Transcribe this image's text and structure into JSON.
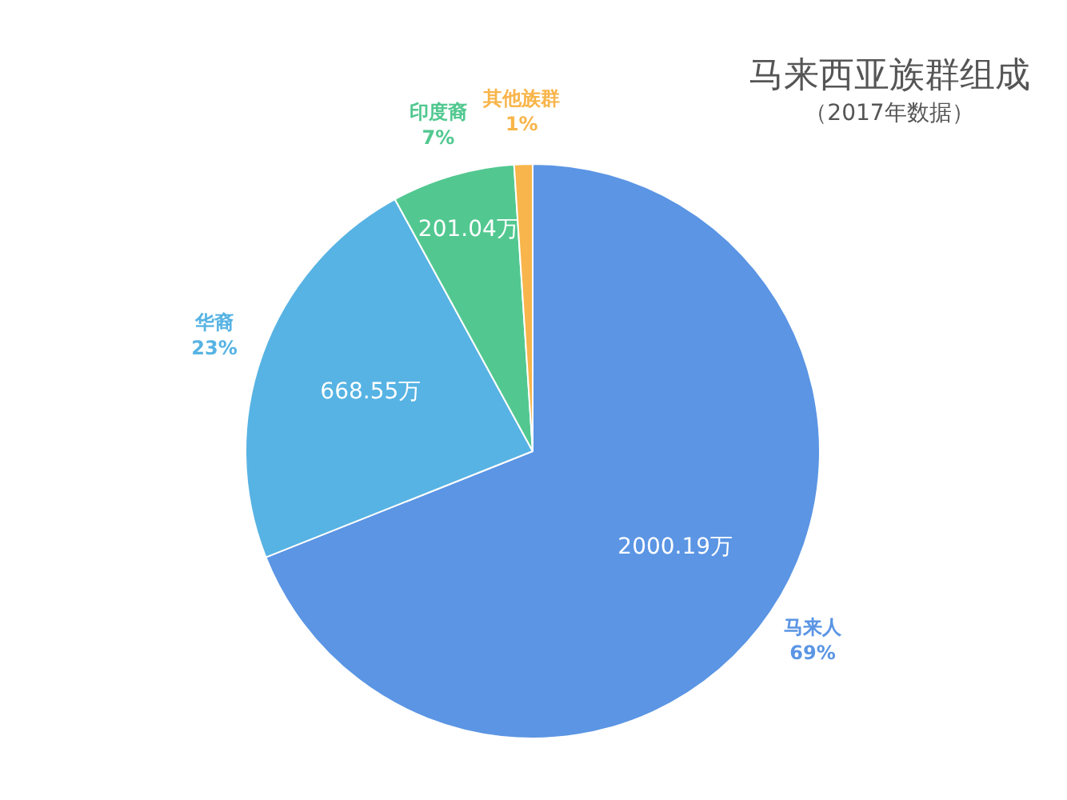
{
  "chart_data": {
    "type": "pie",
    "title": "马来西亚族群组成",
    "subtitle": "（2017年数据）",
    "categories": [
      "马来人",
      "华裔",
      "印度裔",
      "其他族群"
    ],
    "values": [
      2000.19,
      668.55,
      201.04,
      30
    ],
    "value_labels": [
      "2000.19万",
      "668.55万",
      "201.04万",
      null
    ],
    "annotations": [
      "69%",
      "23%",
      "7%",
      "1%"
    ],
    "colors": [
      "#5b95e4",
      "#57b3e3",
      "#52c890",
      "#f8b54b"
    ],
    "legend": false
  }
}
